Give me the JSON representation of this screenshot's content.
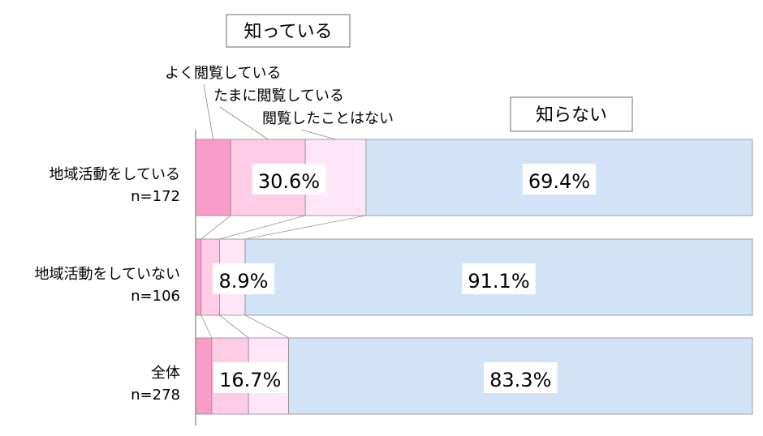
{
  "chart_data": {
    "type": "bar",
    "orientation": "horizontal",
    "stacked": true,
    "percent_scale": true,
    "xlim": [
      0,
      100
    ],
    "title": "",
    "xlabel": "",
    "ylabel": "",
    "categories": [
      {
        "name": "地域活動をしている",
        "n": "n=172"
      },
      {
        "name": "地域活動をしていない",
        "n": "n=106"
      },
      {
        "name": "全体",
        "n": "n=278"
      }
    ],
    "series": [
      {
        "name": "よく閲覧している",
        "color": "#f99cc9",
        "values": [
          6.3,
          1.0,
          2.9
        ]
      },
      {
        "name": "たまに閲覧している",
        "color": "#ffcce5",
        "values": [
          13.4,
          3.3,
          6.6
        ]
      },
      {
        "name": "閲覧したことはない",
        "color": "#ffe6f7",
        "values": [
          10.9,
          4.6,
          7.2
        ]
      },
      {
        "name": "知らない",
        "color": "#d3e3f7",
        "values": [
          69.4,
          91.1,
          83.3
        ]
      }
    ],
    "group_labels": {
      "known": "知っている",
      "unknown": "知らない"
    },
    "known_totals": [
      "30.6%",
      "8.9%",
      "16.7%"
    ],
    "unknown_labels": [
      "69.4%",
      "91.1%",
      "83.3%"
    ],
    "grid": false,
    "legend": "callout labels top-left"
  }
}
